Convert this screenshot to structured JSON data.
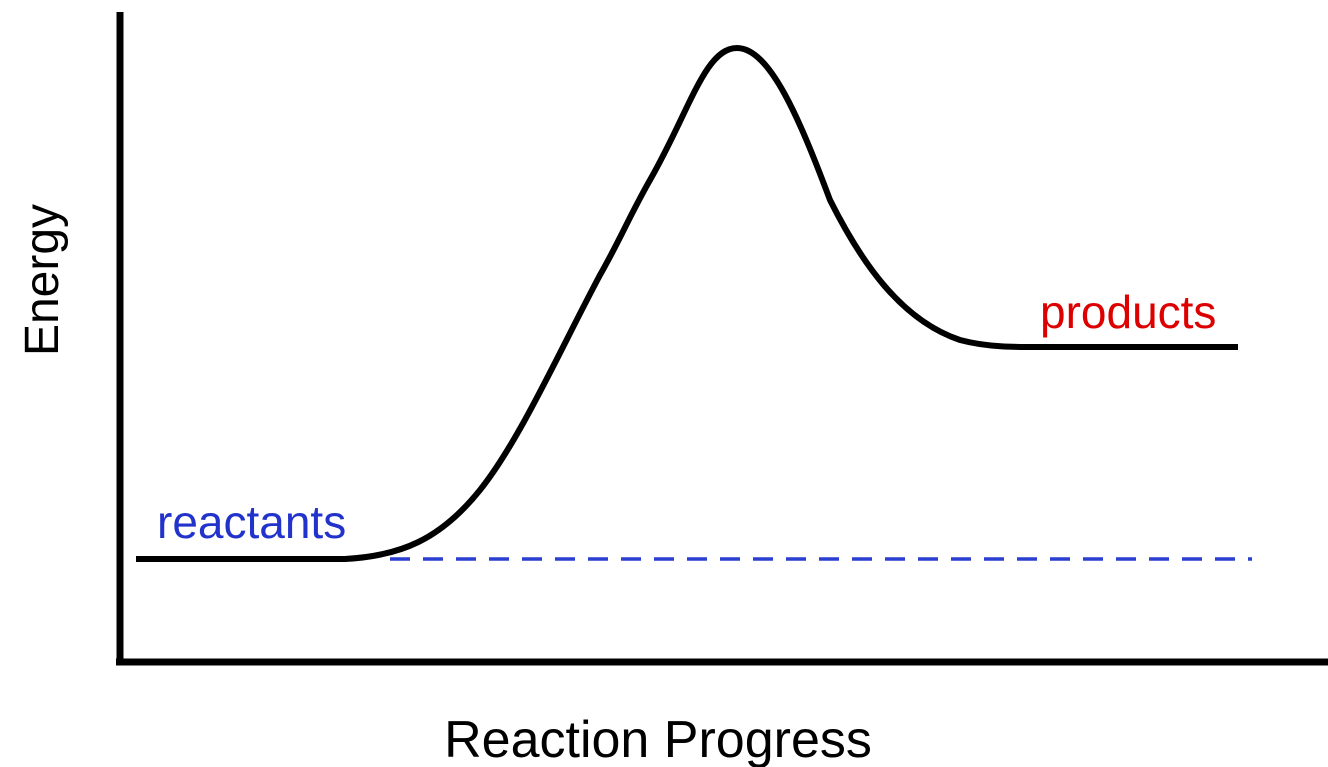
{
  "y_axis_label": "Energy",
  "x_axis_label": "Reaction Progress",
  "labels": {
    "reactants": "reactants",
    "products": "products"
  }
}
